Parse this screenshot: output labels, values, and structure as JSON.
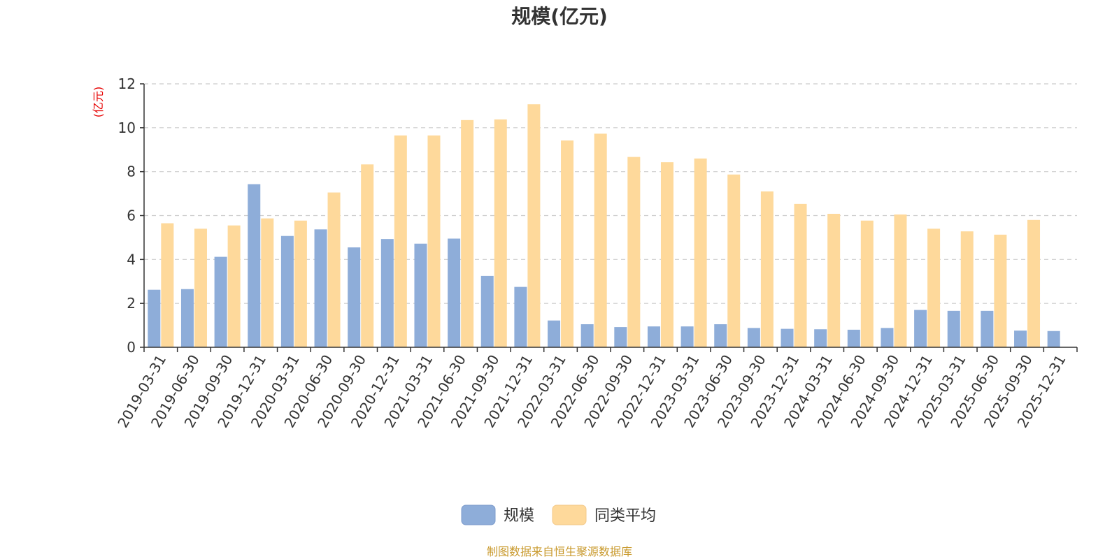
{
  "chart_data": {
    "type": "bar",
    "title": "规模(亿元)",
    "ylabel": "(亿元)",
    "xlabel": "",
    "ylim": [
      0,
      12
    ],
    "yticks": [
      0,
      2,
      4,
      6,
      8,
      10,
      12
    ],
    "grid": true,
    "legend_position": "bottom",
    "categories": [
      "2019-03-31",
      "2019-06-30",
      "2019-09-30",
      "2019-12-31",
      "2020-03-31",
      "2020-06-30",
      "2020-09-30",
      "2020-12-31",
      "2021-03-31",
      "2021-06-30",
      "2021-09-30",
      "2021-12-31",
      "2022-03-31",
      "2022-06-30",
      "2022-09-30",
      "2022-12-31",
      "2023-03-31",
      "2023-06-30",
      "2023-09-30",
      "2023-12-31",
      "2024-03-31",
      "2024-06-30",
      "2024-09-30",
      "2024-12-31",
      "2025-03-31",
      "2025-06-30",
      "2025-09-30",
      "2025-12-31"
    ],
    "series": [
      {
        "name": "规模",
        "color": "#8eadd9",
        "values": [
          2.62,
          2.65,
          4.12,
          7.43,
          5.07,
          5.37,
          4.55,
          4.93,
          4.72,
          4.95,
          3.25,
          2.75,
          1.22,
          1.05,
          0.92,
          0.95,
          0.95,
          1.05,
          0.88,
          0.84,
          0.82,
          0.8,
          0.88,
          1.7,
          1.66,
          1.66,
          0.76,
          0.74
        ]
      },
      {
        "name": "同类平均",
        "color": "#fed99b",
        "values": [
          5.65,
          5.4,
          5.55,
          5.87,
          5.77,
          7.05,
          8.33,
          9.65,
          9.65,
          10.35,
          10.38,
          11.07,
          9.42,
          9.73,
          8.67,
          8.43,
          8.6,
          7.87,
          7.1,
          6.53,
          6.08,
          5.77,
          6.05,
          5.4,
          5.28,
          5.13,
          5.8,
          null
        ]
      }
    ]
  },
  "source_note": "制图数据来自恒生聚源数据库"
}
